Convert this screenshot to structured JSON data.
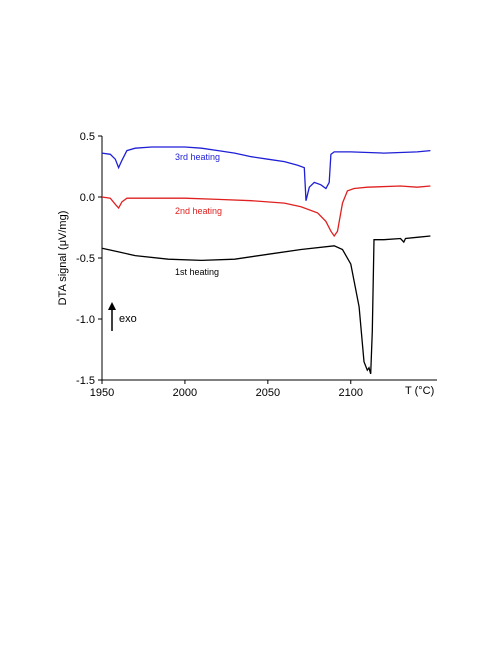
{
  "chart_data": {
    "type": "line",
    "x_label": "T (°C)",
    "y_label": "DTA signal (μV/mg)",
    "annotations": [
      "3rd heating",
      "2nd heating",
      "1st heating",
      "exo"
    ],
    "xlim": [
      1950,
      2152
    ],
    "xticks": [
      1950,
      2000,
      2050,
      2100
    ],
    "ylim": [
      -1.5,
      0.5
    ],
    "yticks": [
      -1.5,
      {
        "value": -1.0,
        "label": "-1.0"
      },
      -0.5,
      {
        "value": 0.0,
        "label": "0.0"
      },
      0.5
    ],
    "series": [
      {
        "name": "3rd heating",
        "color": "#1f1fd6",
        "x": [
          1950,
          1955,
          1958,
          1960,
          1962,
          1965,
          1970,
          1980,
          2000,
          2010,
          2020,
          2030,
          2040,
          2050,
          2060,
          2068,
          2072,
          2073,
          2075,
          2078,
          2082,
          2085,
          2087,
          2088,
          2090,
          2100,
          2120,
          2140,
          2148
        ],
        "values": [
          0.36,
          0.35,
          0.31,
          0.24,
          0.3,
          0.38,
          0.4,
          0.41,
          0.41,
          0.4,
          0.38,
          0.36,
          0.33,
          0.31,
          0.29,
          0.26,
          0.24,
          -0.03,
          0.08,
          0.12,
          0.1,
          0.07,
          0.12,
          0.35,
          0.37,
          0.37,
          0.36,
          0.37,
          0.38
        ]
      },
      {
        "name": "2nd heating",
        "color": "#e02020",
        "x": [
          1950,
          1955,
          1958,
          1960,
          1962,
          1965,
          1980,
          2000,
          2020,
          2040,
          2060,
          2070,
          2080,
          2085,
          2088,
          2090,
          2092,
          2095,
          2098,
          2102,
          2110,
          2130,
          2140,
          2148
        ],
        "values": [
          0.0,
          -0.01,
          -0.06,
          -0.09,
          -0.04,
          -0.01,
          -0.01,
          -0.01,
          -0.02,
          -0.03,
          -0.05,
          -0.08,
          -0.13,
          -0.2,
          -0.28,
          -0.32,
          -0.28,
          -0.05,
          0.05,
          0.07,
          0.08,
          0.09,
          0.08,
          0.09
        ]
      },
      {
        "name": "1st heating",
        "color": "#000000",
        "x": [
          1950,
          1960,
          1970,
          1990,
          2010,
          2030,
          2050,
          2070,
          2090,
          2095,
          2100,
          2105,
          2108,
          2110,
          2111,
          2112,
          2113,
          2114,
          2120,
          2130,
          2132,
          2133,
          2140,
          2148
        ],
        "values": [
          -0.42,
          -0.45,
          -0.48,
          -0.51,
          -0.52,
          -0.51,
          -0.47,
          -0.43,
          -0.4,
          -0.43,
          -0.55,
          -0.9,
          -1.35,
          -1.42,
          -1.4,
          -1.45,
          -1.1,
          -0.35,
          -0.35,
          -0.34,
          -0.37,
          -0.34,
          -0.33,
          -0.32
        ]
      }
    ]
  }
}
